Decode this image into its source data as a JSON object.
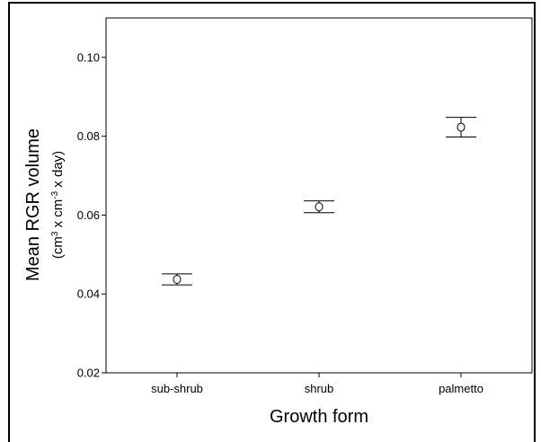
{
  "chart_data": {
    "type": "scatter",
    "title": "",
    "xlabel": "Growth form",
    "ylabel": "Mean RGR volume",
    "ylabel_units": {
      "base_1": "(cm",
      "sup_1": "3",
      "base_2": " x cm",
      "sup_2": "-3",
      "base_3": " x day)"
    },
    "categories": [
      "sub-shrub",
      "shrub",
      "palmetto"
    ],
    "ylim": [
      0.02,
      0.11
    ],
    "yticks": [
      "0.02",
      "0.04",
      "0.06",
      "0.08",
      "0.10"
    ],
    "ytick_values": [
      0.02,
      0.04,
      0.06,
      0.08,
      0.1
    ],
    "series": [
      {
        "values": [
          0.0437,
          0.0621,
          0.0823
        ],
        "error_low": [
          0.0423,
          0.0606,
          0.0798
        ],
        "error_high": [
          0.0451,
          0.0636,
          0.0848
        ]
      }
    ],
    "grid": false,
    "legend": "none"
  }
}
